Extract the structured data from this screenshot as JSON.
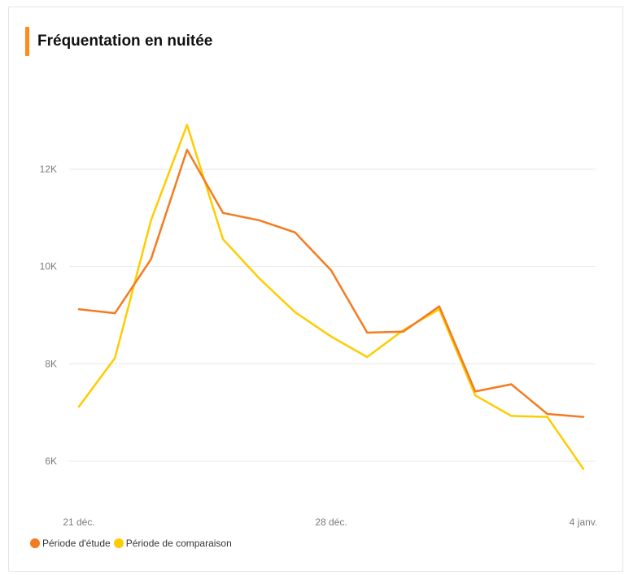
{
  "header": {
    "title": "Fréquentation en nuitée",
    "accent_color": "#ff8c1a"
  },
  "chart_data": {
    "type": "line",
    "title": "Fréquentation en nuitée",
    "x": [
      "2024-12-21",
      "2024-12-22",
      "2024-12-23",
      "2024-12-24",
      "2024-12-25",
      "2024-12-26",
      "2024-12-27",
      "2024-12-28",
      "2024-12-29",
      "2024-12-30",
      "2024-12-31",
      "2025-01-01",
      "2025-01-02",
      "2025-01-03",
      "2025-01-04"
    ],
    "xticks": [
      "21 déc.",
      "28 déc.",
      "4 janv."
    ],
    "yticks": [
      "6K",
      "8K",
      "10K",
      "12K"
    ],
    "ytick_values": [
      6000,
      8000,
      10000,
      12000
    ],
    "ylim": [
      5000,
      13700
    ],
    "grid": true,
    "legend_position": "bottom-left",
    "series": [
      {
        "name": "Période d'étude",
        "color": "#f47b20",
        "values": [
          9120,
          9040,
          10150,
          12400,
          11100,
          10950,
          10700,
          9920,
          8640,
          8660,
          9180,
          7430,
          7580,
          6970,
          6910
        ]
      },
      {
        "name": "Période de comparaison",
        "color": "#ffcc00",
        "values": [
          7120,
          8120,
          10950,
          12910,
          10560,
          9760,
          9060,
          8560,
          8140,
          8690,
          9120,
          7350,
          6930,
          6910,
          5840
        ]
      }
    ]
  }
}
